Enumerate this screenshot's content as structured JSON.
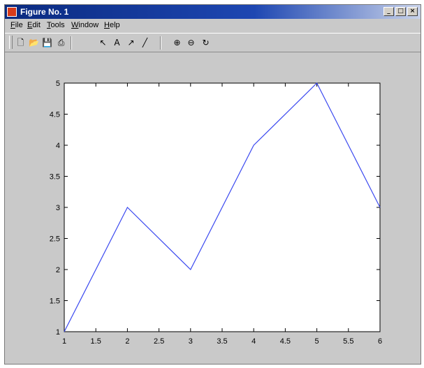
{
  "window": {
    "title": "Figure No. 1",
    "buttons": {
      "minimize": "_",
      "maximize": "□",
      "close": "×"
    }
  },
  "menu": [
    "File",
    "Edit",
    "Tools",
    "Window",
    "Help"
  ],
  "toolbar": [
    {
      "name": "new-figure-icon",
      "glyph": "🗋"
    },
    {
      "name": "open-file-icon",
      "glyph": "📂"
    },
    {
      "name": "save-icon",
      "glyph": "💾"
    },
    {
      "name": "print-icon",
      "glyph": "⎙"
    },
    {
      "name": "select-arrow-icon",
      "glyph": "↖"
    },
    {
      "name": "insert-text-icon",
      "glyph": "A"
    },
    {
      "name": "insert-arrow-icon",
      "glyph": "↗"
    },
    {
      "name": "insert-line-icon",
      "glyph": "╱"
    },
    {
      "name": "zoom-in-icon",
      "glyph": "⊕"
    },
    {
      "name": "zoom-out-icon",
      "glyph": "⊖"
    },
    {
      "name": "rotate-icon",
      "glyph": "↻"
    }
  ],
  "chart_data": {
    "type": "line",
    "x": [
      1,
      2,
      3,
      4,
      5,
      6
    ],
    "series": [
      {
        "values": [
          1,
          3,
          2,
          4,
          5,
          3
        ],
        "color": "#3b49f0"
      }
    ],
    "xlim": [
      1,
      6
    ],
    "ylim": [
      1,
      5
    ],
    "xticks": [
      "1",
      "1.5",
      "2",
      "2.5",
      "3",
      "3.5",
      "4",
      "4.5",
      "5",
      "5.5",
      "6"
    ],
    "yticks": [
      "1",
      "1.5",
      "2",
      "2.5",
      "3",
      "3.5",
      "4",
      "4.5",
      "5"
    ],
    "title": "",
    "xlabel": "",
    "ylabel": "",
    "grid": false
  }
}
